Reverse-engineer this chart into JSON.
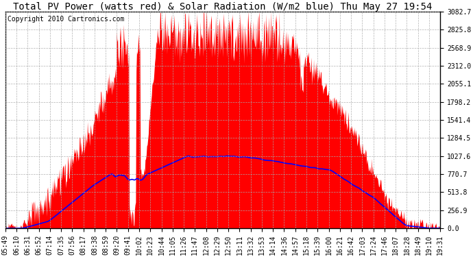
{
  "title": "Total PV Power (watts red) & Solar Radiation (W/m2 blue) Thu May 27 19:54",
  "copyright": "Copyright 2010 Cartronics.com",
  "y_ticks": [
    0.0,
    256.9,
    513.8,
    770.7,
    1027.6,
    1284.5,
    1541.4,
    1798.2,
    2055.1,
    2312.0,
    2568.9,
    2825.8,
    3082.7
  ],
  "y_max": 3082.7,
  "x_labels": [
    "05:49",
    "06:10",
    "06:31",
    "06:52",
    "07:14",
    "07:35",
    "07:56",
    "08:17",
    "08:38",
    "08:59",
    "09:20",
    "09:41",
    "10:02",
    "10:23",
    "10:44",
    "11:05",
    "11:26",
    "11:47",
    "12:08",
    "12:29",
    "12:50",
    "13:11",
    "13:32",
    "13:53",
    "14:14",
    "14:36",
    "14:57",
    "15:18",
    "15:39",
    "16:00",
    "16:21",
    "16:42",
    "17:03",
    "17:24",
    "17:46",
    "18:07",
    "18:28",
    "18:49",
    "19:10",
    "19:31"
  ],
  "n_labels": 40,
  "pv_color": "#FF0000",
  "solar_color": "#0000FF",
  "background_color": "#FFFFFF",
  "grid_color": "#AAAAAA",
  "title_fontsize": 10,
  "tick_fontsize": 7,
  "copyright_fontsize": 7,
  "figwidth": 6.9,
  "figheight": 3.75,
  "dpi": 100
}
